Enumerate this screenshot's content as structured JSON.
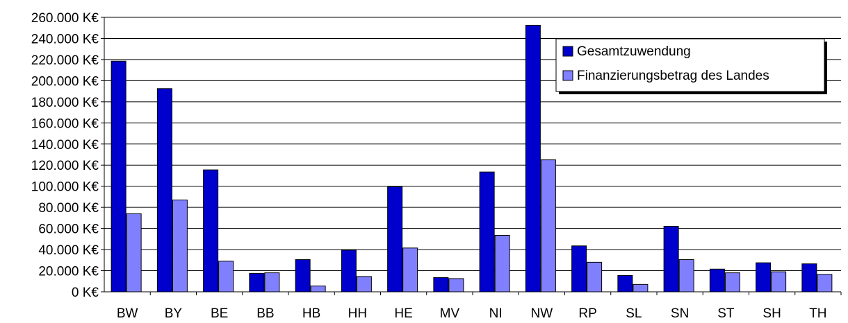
{
  "chart_data": {
    "type": "bar",
    "categories": [
      "BW",
      "BY",
      "BE",
      "BB",
      "HB",
      "HH",
      "HE",
      "MV",
      "NI",
      "NW",
      "RP",
      "SL",
      "SN",
      "ST",
      "SH",
      "TH"
    ],
    "series": [
      {
        "name": "Gesamtzuwendung",
        "color": "#0000cc",
        "values": [
          218500,
          192500,
          115500,
          17500,
          30500,
          39500,
          99500,
          13500,
          113500,
          252500,
          43500,
          15500,
          62000,
          21500,
          27500,
          26500
        ]
      },
      {
        "name": "Finanzierungsbetrag des Landes",
        "color": "#8080ff",
        "values": [
          74000,
          87000,
          29000,
          18000,
          5500,
          14500,
          41500,
          12500,
          53500,
          125000,
          28000,
          7000,
          30500,
          18000,
          19000,
          16500
        ]
      }
    ],
    "y_ticks": [
      "0 K€",
      "20.000 K€",
      "40.000 K€",
      "60.000 K€",
      "80.000 K€",
      "100.000 K€",
      "120.000 K€",
      "140.000 K€",
      "160.000 K€",
      "180.000 K€",
      "200.000 K€",
      "220.000 K€",
      "240.000 K€",
      "260.000 K€"
    ],
    "ylim": [
      0,
      260000
    ],
    "grid": true,
    "legend_position": "top-right",
    "title": "",
    "xlabel": "",
    "ylabel": ""
  }
}
